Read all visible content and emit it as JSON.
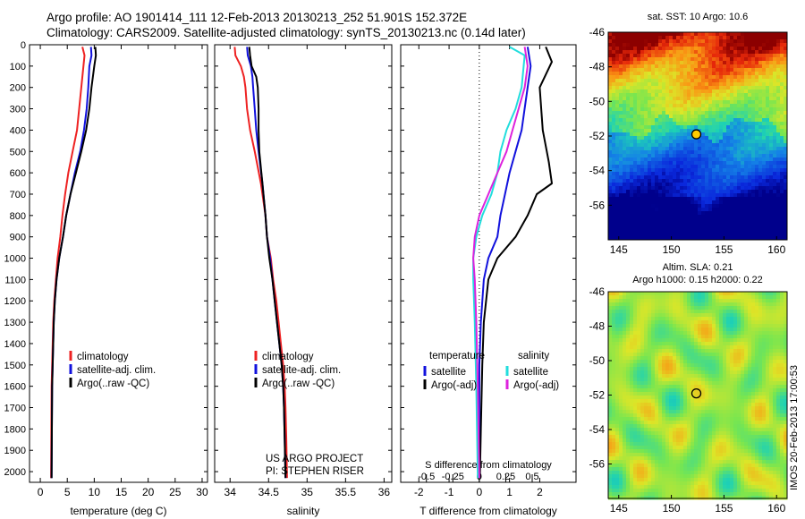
{
  "header": {
    "line1": "Argo profile: AO 1901414_111 12-Feb-2013 20130213_252 51.901S 152.372E",
    "line2": "Climatology: CARS2009. Satellite-adjusted climatology: synTS_20130213.nc (0.14d later)"
  },
  "side_text": "IMOS 20-Feb-2013 17:00:53",
  "colors": {
    "red": "#ee2222",
    "blue": "#1111dd",
    "black": "#000000",
    "cyan": "#22dddd",
    "magenta": "#dd22dd"
  },
  "chart_data": [
    {
      "type": "line",
      "xlabel": "temperature (deg C)",
      "ylabel": "",
      "xlim": [
        -2,
        31
      ],
      "ylim": [
        2050,
        0
      ],
      "xticks": [
        0,
        5,
        10,
        15,
        20,
        25,
        30
      ],
      "yticks": [
        0,
        100,
        200,
        300,
        400,
        500,
        600,
        700,
        800,
        900,
        1000,
        1100,
        1200,
        1300,
        1400,
        1500,
        1600,
        1700,
        1800,
        1900,
        2000
      ],
      "legend": {
        "placement": "lower-middle",
        "entries": [
          "climatology",
          "satellite-adj. clim.",
          "Argo(..raw -QC)"
        ]
      },
      "series": [
        {
          "name": "climatology",
          "color": "red",
          "x": [
            7.8,
            8.2,
            8.0,
            7.6,
            7.2,
            6.8,
            6.0,
            5.2,
            4.6,
            4.1,
            3.7,
            3.2,
            2.9,
            2.6,
            2.4,
            2.3,
            2.2,
            2.1,
            2.05,
            2.0
          ],
          "y": [
            10,
            50,
            100,
            200,
            300,
            400,
            500,
            600,
            700,
            800,
            900,
            1000,
            1100,
            1200,
            1300,
            1400,
            1500,
            1600,
            1800,
            2030
          ]
        },
        {
          "name": "satellite-adj. clim.",
          "color": "blue",
          "x": [
            9.4,
            9.5,
            9.1,
            8.9,
            8.6,
            8.1,
            7.4,
            6.4,
            5.6,
            4.8,
            4.2,
            3.5,
            3.0,
            2.7,
            2.5,
            2.4,
            2.3,
            2.2,
            2.15,
            2.1
          ],
          "y": [
            10,
            50,
            100,
            200,
            300,
            400,
            500,
            600,
            700,
            800,
            900,
            1000,
            1100,
            1200,
            1300,
            1400,
            1500,
            1600,
            1800,
            2030
          ]
        },
        {
          "name": "Argo(..raw -QC)",
          "color": "black",
          "x": [
            10.2,
            10.3,
            10.0,
            9.5,
            9.1,
            8.5,
            7.6,
            6.6,
            5.6,
            4.8,
            4.2,
            3.5,
            3.0,
            2.7,
            2.5,
            2.4,
            2.3,
            2.2,
            2.15,
            2.1
          ],
          "y": [
            10,
            50,
            100,
            200,
            300,
            400,
            500,
            600,
            700,
            800,
            900,
            1000,
            1100,
            1200,
            1300,
            1400,
            1500,
            1600,
            1800,
            2030
          ]
        }
      ]
    },
    {
      "type": "line",
      "xlabel": "salinity",
      "ylabel": "",
      "xlim": [
        33.8,
        36.1
      ],
      "ylim": [
        2050,
        0
      ],
      "xticks": [
        34,
        34.5,
        35,
        35.5,
        36
      ],
      "xticklabels": [
        "34",
        "34.5",
        "35",
        "35.5",
        "36"
      ],
      "legend": {
        "placement": "lower-middle",
        "entries": [
          "climatology",
          "satellite-adj. clim.",
          "Argo(..raw -QC)"
        ]
      },
      "annotations": [
        "US ARGO PROJECT",
        "PI: STEPHEN RISER"
      ],
      "series": [
        {
          "name": "climatology",
          "color": "red",
          "x": [
            34.06,
            34.07,
            34.14,
            34.18,
            34.2,
            34.22,
            34.26,
            34.32,
            34.4,
            34.46,
            34.48,
            34.53,
            34.56,
            34.6,
            34.63,
            34.66,
            34.69,
            34.71,
            34.72,
            34.73,
            34.74
          ],
          "y": [
            10,
            50,
            100,
            150,
            200,
            300,
            400,
            500,
            650,
            800,
            900,
            1000,
            1100,
            1200,
            1300,
            1400,
            1500,
            1600,
            1700,
            1850,
            2030
          ]
        },
        {
          "name": "satellite-adj. clim.",
          "color": "blue",
          "x": [
            34.22,
            34.23,
            34.27,
            34.29,
            34.3,
            34.32,
            34.34,
            34.37,
            34.42,
            34.46,
            34.48,
            34.52,
            34.55,
            34.58,
            34.61,
            34.64,
            34.67,
            34.69,
            34.7,
            34.71,
            34.72
          ],
          "y": [
            10,
            50,
            100,
            150,
            200,
            300,
            400,
            500,
            650,
            800,
            900,
            1000,
            1100,
            1200,
            1300,
            1400,
            1500,
            1600,
            1700,
            1850,
            2030
          ]
        },
        {
          "name": "Argo(..raw -QC)",
          "color": "black",
          "x": [
            34.25,
            34.26,
            34.28,
            34.34,
            34.36,
            34.37,
            34.37,
            34.38,
            34.42,
            34.46,
            34.48,
            34.51,
            34.55,
            34.58,
            34.61,
            34.64,
            34.67,
            34.69,
            34.7,
            34.71,
            34.72
          ],
          "y": [
            10,
            50,
            100,
            150,
            200,
            300,
            400,
            500,
            650,
            800,
            900,
            1000,
            1100,
            1200,
            1300,
            1400,
            1500,
            1600,
            1700,
            1850,
            2030
          ]
        }
      ]
    },
    {
      "type": "line",
      "xlabel": "T difference from climatology",
      "xlabel_top": "S difference from climatology",
      "xlim": [
        -2.6,
        3.2
      ],
      "ylim": [
        2050,
        0
      ],
      "xticks": [
        -2,
        -1,
        0,
        1,
        2
      ],
      "xticks_top": [
        -0.5,
        -0.25,
        0,
        0.25,
        0.5
      ],
      "xticklabels_top": [
        "-0.5",
        "-0.25",
        "0",
        "0.25",
        "0.5"
      ],
      "xticks_top_position_T_units": [
        -1.75,
        -0.875,
        0,
        0.875,
        1.75
      ],
      "legend": {
        "placement": "lower-middle",
        "groups": [
          {
            "title": "temperature",
            "entries": [
              "satellite",
              "Argo(-adj)"
            ]
          },
          {
            "title": "salinity",
            "entries": [
              "satellite",
              "Argo(-adj)"
            ]
          }
        ]
      },
      "series": [
        {
          "name": "satellite",
          "color": "blue",
          "x": [
            1.6,
            1.7,
            1.6,
            1.4,
            1.2,
            1.0,
            0.85,
            0.7,
            0.6,
            0.3,
            0.15,
            0.05,
            0.0,
            0.0,
            0.0
          ],
          "y": [
            10,
            100,
            200,
            400,
            500,
            600,
            700,
            800,
            900,
            1000,
            1100,
            1300,
            1500,
            1800,
            2030
          ]
        },
        {
          "name": "Argo(-adj)",
          "color": "black",
          "x": [
            2.2,
            2.4,
            2.0,
            2.1,
            2.3,
            2.4,
            1.9,
            1.6,
            1.2,
            0.6,
            0.3,
            0.15,
            0.1,
            0.05,
            0.02
          ],
          "y": [
            10,
            80,
            200,
            400,
            550,
            650,
            700,
            800,
            900,
            1000,
            1100,
            1300,
            1500,
            1800,
            2030
          ]
        },
        {
          "name": "satellite",
          "color": "cyan",
          "x": [
            1.0,
            1.5,
            1.4,
            1.2,
            0.9,
            0.7,
            0.6,
            0.4,
            0.1,
            -0.1,
            -0.2,
            -0.2,
            -0.15,
            -0.1,
            -0.05
          ],
          "y": [
            10,
            50,
            200,
            300,
            400,
            500,
            600,
            700,
            800,
            900,
            1000,
            1100,
            1300,
            1600,
            2030
          ]
        },
        {
          "name": "Argo(-adj)",
          "color": "magenta",
          "x": [
            1.5,
            1.6,
            1.5,
            1.3,
            1.1,
            0.9,
            0.6,
            0.3,
            0.0,
            -0.15,
            -0.2,
            -0.15,
            -0.1,
            -0.05,
            0.0
          ],
          "y": [
            10,
            100,
            200,
            300,
            400,
            500,
            600,
            700,
            800,
            900,
            1000,
            1100,
            1300,
            1600,
            2030
          ]
        }
      ]
    },
    {
      "type": "heatmap",
      "title": "sat. SST: 10 Argo: 10.6",
      "xlim": [
        144,
        161
      ],
      "ylim": [
        -58,
        -46
      ],
      "xticks": [
        145,
        150,
        155,
        160
      ],
      "yticks": [
        -46,
        -48,
        -50,
        -52,
        -54,
        -56
      ],
      "marker": {
        "lon": 152.372,
        "lat": -51.901,
        "fill": "#ffcc00"
      }
    },
    {
      "type": "heatmap",
      "title": "Altim. SLA: 0.21",
      "subtitle": "Argo h1000: 0.15 h2000: 0.22",
      "xlim": [
        144,
        161
      ],
      "ylim": [
        -58,
        -46
      ],
      "xticks": [
        145,
        150,
        155,
        160
      ],
      "yticks": [
        -46,
        -48,
        -50,
        -52,
        -54,
        -56
      ],
      "marker": {
        "lon": 152.372,
        "lat": -51.901,
        "fill": "none"
      }
    }
  ]
}
